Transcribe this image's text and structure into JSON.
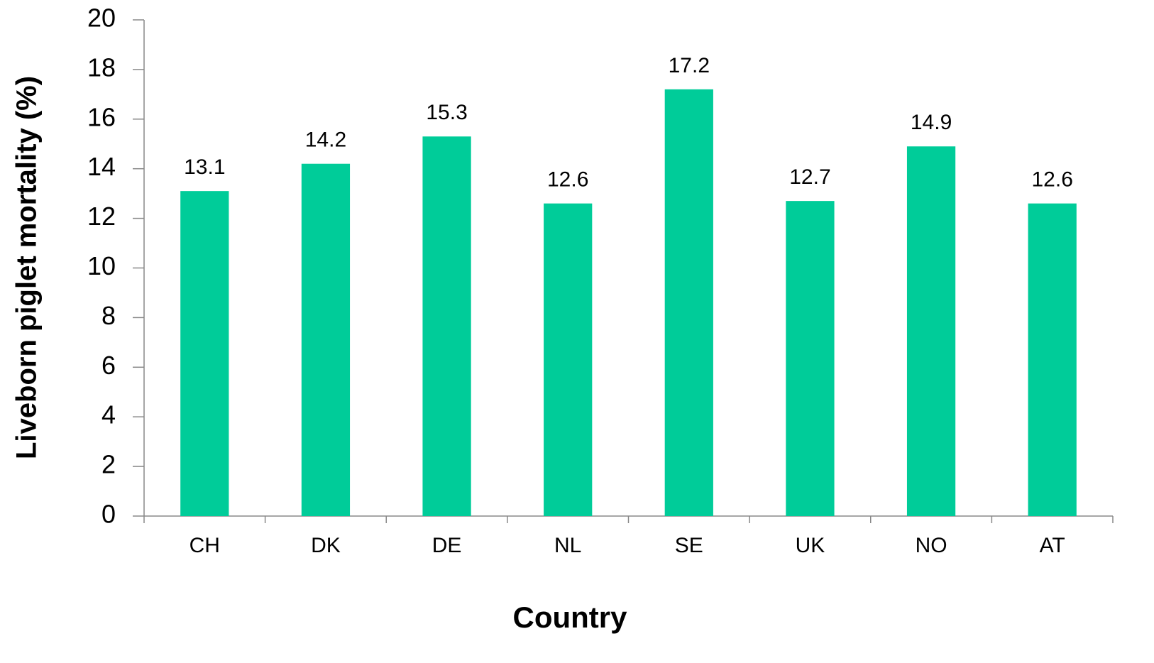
{
  "chart_data": {
    "type": "bar",
    "xlabel": "Country",
    "ylabel": "Liveborn piglet mortality (%)",
    "categories": [
      "CH",
      "DK",
      "DE",
      "NL",
      "SE",
      "UK",
      "NO",
      "AT"
    ],
    "values": [
      13.1,
      14.2,
      15.3,
      12.6,
      17.2,
      12.7,
      14.9,
      12.6
    ],
    "color": "#00cc99",
    "ylim": [
      0,
      20
    ],
    "yticks": [
      0,
      2,
      4,
      6,
      8,
      10,
      12,
      14,
      16,
      18,
      20
    ],
    "grid": false
  }
}
